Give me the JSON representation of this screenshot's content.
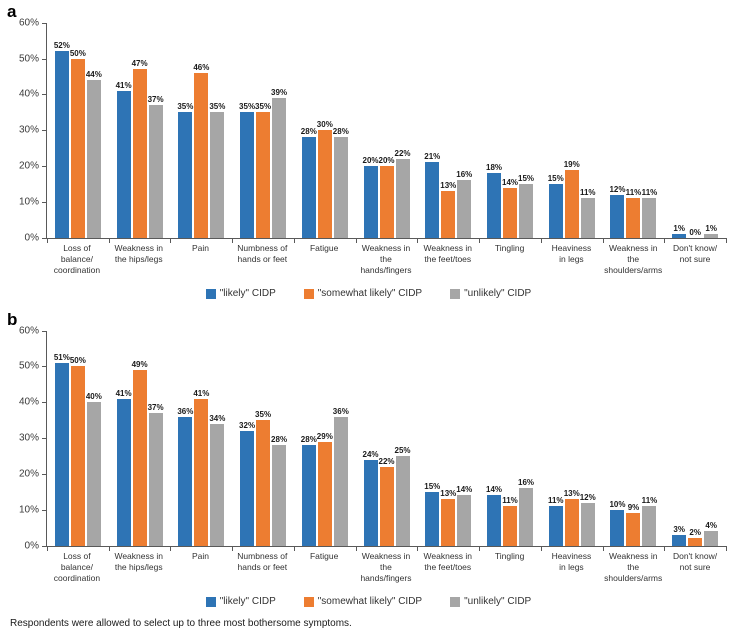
{
  "footnote": "Respondents were allowed to select up to three most bothersome symptoms.",
  "colors": {
    "likely": "#2E74B5",
    "somewhat_likely": "#ED7D31",
    "unlikely": "#A6A6A6",
    "axis": "#595959"
  },
  "chart_data": [
    {
      "panel_label": "a",
      "type": "bar",
      "title": "",
      "xlabel": "",
      "ylabel": "",
      "ylim": [
        0,
        60
      ],
      "ytick_step": 10,
      "ytick_suffix": "%",
      "grid": false,
      "legend_position": "bottom-center",
      "categories": [
        "Loss of balance/\ncoordination",
        "Weakness in\nthe hips/legs",
        "Pain",
        "Numbness of\nhands or feet",
        "Fatigue",
        "Weakness in the\nhands/fingers",
        "Weakness in\nthe feet/toes",
        "Tingling",
        "Heaviness\nin legs",
        "Weakness in the\nshoulders/arms",
        "Don't know/\nnot sure"
      ],
      "series": [
        {
          "name": "\"likely\" CIDP",
          "color": "#2E74B5",
          "values": [
            52,
            41,
            35,
            35,
            28,
            20,
            21,
            18,
            15,
            12,
            1
          ]
        },
        {
          "name": "\"somewhat likely\" CIDP",
          "color": "#ED7D31",
          "values": [
            50,
            47,
            46,
            35,
            30,
            20,
            13,
            14,
            19,
            11,
            0
          ]
        },
        {
          "name": "\"unlikely\" CIDP",
          "color": "#A6A6A6",
          "values": [
            44,
            37,
            35,
            39,
            28,
            22,
            16,
            15,
            11,
            11,
            1
          ]
        }
      ]
    },
    {
      "panel_label": "b",
      "type": "bar",
      "title": "",
      "xlabel": "",
      "ylabel": "",
      "ylim": [
        0,
        60
      ],
      "ytick_step": 10,
      "ytick_suffix": "%",
      "grid": false,
      "legend_position": "bottom-center",
      "categories": [
        "Loss of balance/\ncoordination",
        "Weakness in\nthe hips/legs",
        "Pain",
        "Numbness of\nhands or feet",
        "Fatigue",
        "Weakness in the\nhands/fingers",
        "Weakness in\nthe feet/toes",
        "Tingling",
        "Heaviness\nin legs",
        "Weakness in the\nshoulders/arms",
        "Don't know/\nnot sure"
      ],
      "series": [
        {
          "name": "\"likely\" CIDP",
          "color": "#2E74B5",
          "values": [
            51,
            41,
            36,
            32,
            28,
            24,
            15,
            14,
            11,
            10,
            3
          ]
        },
        {
          "name": "\"somewhat likely\" CIDP",
          "color": "#ED7D31",
          "values": [
            50,
            49,
            41,
            35,
            29,
            22,
            13,
            11,
            13,
            9,
            2
          ]
        },
        {
          "name": "\"unlikely\" CIDP",
          "color": "#A6A6A6",
          "values": [
            40,
            37,
            34,
            28,
            36,
            25,
            14,
            16,
            12,
            11,
            4
          ]
        }
      ]
    }
  ]
}
